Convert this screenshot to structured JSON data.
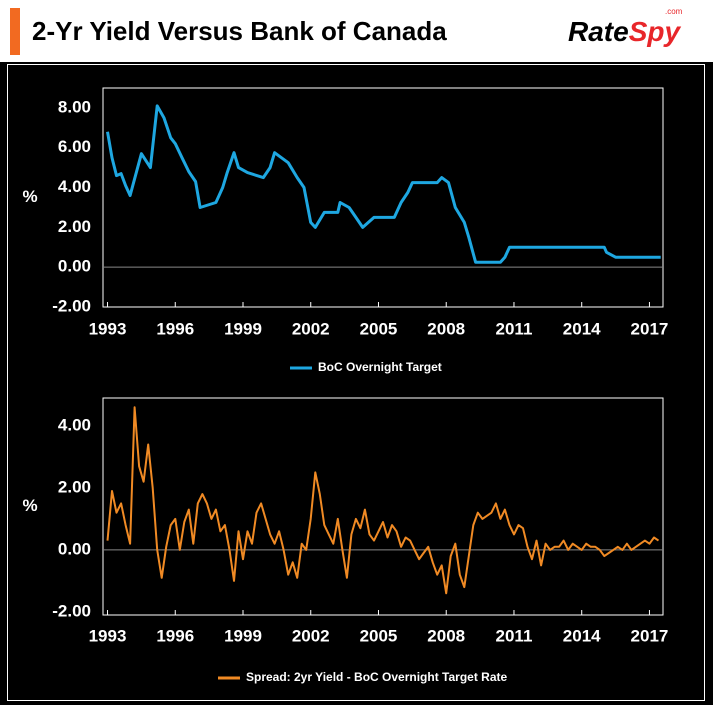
{
  "header": {
    "title": "2-Yr Yield Versus Bank of Canada",
    "logo": [
      "Rate",
      "Spy"
    ],
    "logo_suffix": ".com"
  },
  "chart_data": [
    {
      "type": "line",
      "y_label": "%",
      "x": [
        1993,
        1993.2,
        1993.4,
        1993.6,
        1993.8,
        1994,
        1994.5,
        1994.9,
        1995.2,
        1995.5,
        1995.8,
        1996,
        1996.3,
        1996.6,
        1996.9,
        1997.1,
        1997.8,
        1998.1,
        1998.3,
        1998.6,
        1998.8,
        1999.2,
        1999.9,
        2000.2,
        2000.4,
        2001,
        2001.4,
        2001.7,
        2002,
        2002.2,
        2002.6,
        2003.2,
        2003.3,
        2003.7,
        2004,
        2004.3,
        2004.8,
        2005.7,
        2006,
        2006.3,
        2006.5,
        2007.6,
        2007.8,
        2008.1,
        2008.4,
        2008.8,
        2009,
        2009.3,
        2010.4,
        2010.6,
        2010.8,
        2015,
        2015.1,
        2015.5,
        2017.5
      ],
      "series": [
        {
          "name": "BoC Overnight Target",
          "color": "#1ea7e1",
          "values": [
            6.8,
            5.5,
            4.6,
            4.7,
            4.1,
            3.6,
            5.7,
            5.0,
            8.1,
            7.5,
            6.5,
            6.2,
            5.5,
            4.8,
            4.3,
            3.0,
            3.25,
            4.0,
            4.75,
            5.75,
            5.0,
            4.75,
            4.5,
            5.0,
            5.75,
            5.25,
            4.5,
            4.0,
            2.25,
            2.0,
            2.75,
            2.75,
            3.25,
            3.0,
            2.5,
            2.0,
            2.5,
            2.5,
            3.25,
            3.75,
            4.25,
            4.25,
            4.5,
            4.25,
            3.0,
            2.25,
            1.5,
            0.25,
            0.25,
            0.5,
            1.0,
            1.0,
            0.75,
            0.5,
            0.5
          ]
        }
      ],
      "xlim": [
        1992.8,
        2017.6
      ],
      "xticks": [
        1993,
        1996,
        1999,
        2002,
        2005,
        2008,
        2011,
        2014,
        2017
      ],
      "ylim": [
        -2,
        9
      ],
      "yticks": [
        {
          "value": -2,
          "label": "-2.00"
        },
        {
          "value": 0,
          "label": "0.00"
        },
        {
          "value": 2,
          "label": "2.00"
        },
        {
          "value": 4,
          "label": "4.00"
        },
        {
          "value": 6,
          "label": "6.00"
        },
        {
          "value": 8,
          "label": "8.00"
        }
      ],
      "grid": false,
      "legend": "bottom"
    },
    {
      "type": "line",
      "y_label": "%",
      "x": [
        1993,
        1993.2,
        1993.4,
        1993.6,
        1993.8,
        1994,
        1994.2,
        1994.4,
        1994.6,
        1994.8,
        1995,
        1995.2,
        1995.4,
        1995.6,
        1995.8,
        1996,
        1996.2,
        1996.4,
        1996.6,
        1996.8,
        1997,
        1997.2,
        1997.4,
        1997.6,
        1997.8,
        1998,
        1998.2,
        1998.4,
        1998.6,
        1998.8,
        1999,
        1999.2,
        1999.4,
        1999.6,
        1999.8,
        2000,
        2000.2,
        2000.4,
        2000.6,
        2000.8,
        2001,
        2001.2,
        2001.4,
        2001.6,
        2001.8,
        2002,
        2002.2,
        2002.4,
        2002.6,
        2002.8,
        2003,
        2003.2,
        2003.4,
        2003.6,
        2003.8,
        2004,
        2004.2,
        2004.4,
        2004.6,
        2004.8,
        2005,
        2005.2,
        2005.4,
        2005.6,
        2005.8,
        2006,
        2006.2,
        2006.4,
        2006.6,
        2006.8,
        2007,
        2007.2,
        2007.4,
        2007.6,
        2007.8,
        2008,
        2008.2,
        2008.4,
        2008.6,
        2008.8,
        2009,
        2009.2,
        2009.4,
        2009.6,
        2009.8,
        2010,
        2010.2,
        2010.4,
        2010.6,
        2010.8,
        2011,
        2011.2,
        2011.4,
        2011.6,
        2011.8,
        2012,
        2012.2,
        2012.4,
        2012.6,
        2012.8,
        2013,
        2013.2,
        2013.4,
        2013.6,
        2013.8,
        2014,
        2014.2,
        2014.4,
        2014.6,
        2014.8,
        2015,
        2015.2,
        2015.4,
        2015.6,
        2015.8,
        2016,
        2016.2,
        2016.4,
        2016.6,
        2016.8,
        2017,
        2017.2,
        2017.4
      ],
      "series": [
        {
          "name": "Spread: 2yr Yield - BoC Overnight Target Rate",
          "color": "#f08a24",
          "values": [
            0.3,
            1.9,
            1.2,
            1.5,
            0.8,
            0.2,
            4.6,
            2.7,
            2.2,
            3.4,
            2.0,
            0.0,
            -0.9,
            0.1,
            0.8,
            1.0,
            0.0,
            0.9,
            1.3,
            0.2,
            1.5,
            1.8,
            1.5,
            1.0,
            1.3,
            0.6,
            0.8,
            0.0,
            -1.0,
            0.6,
            -0.3,
            0.6,
            0.2,
            1.2,
            1.5,
            1.0,
            0.5,
            0.2,
            0.6,
            0.0,
            -0.8,
            -0.4,
            -0.9,
            0.2,
            0.0,
            1.0,
            2.5,
            1.8,
            0.8,
            0.5,
            0.2,
            1.0,
            0.0,
            -0.9,
            0.5,
            1.0,
            0.7,
            1.3,
            0.5,
            0.3,
            0.6,
            0.9,
            0.4,
            0.8,
            0.6,
            0.1,
            0.4,
            0.3,
            0.0,
            -0.3,
            -0.1,
            0.1,
            -0.4,
            -0.8,
            -0.5,
            -1.4,
            -0.2,
            0.2,
            -0.8,
            -1.2,
            -0.2,
            0.8,
            1.2,
            1.0,
            1.1,
            1.2,
            1.5,
            1.0,
            1.3,
            0.8,
            0.5,
            0.8,
            0.7,
            0.1,
            -0.3,
            0.3,
            -0.5,
            0.2,
            0.0,
            0.1,
            0.1,
            0.3,
            0.0,
            0.2,
            0.1,
            0.0,
            0.2,
            0.1,
            0.1,
            0.0,
            -0.2,
            -0.1,
            0.0,
            0.1,
            0.0,
            0.2,
            0.0,
            0.1,
            0.2,
            0.3,
            0.2,
            0.4,
            0.3
          ]
        }
      ],
      "xlim": [
        1992.8,
        2017.6
      ],
      "xticks": [
        1993,
        1996,
        1999,
        2002,
        2005,
        2008,
        2011,
        2014,
        2017
      ],
      "ylim": [
        -2.1,
        4.9
      ],
      "yticks": [
        {
          "value": -2,
          "label": "-2.00"
        },
        {
          "value": 0,
          "label": "0.00"
        },
        {
          "value": 2,
          "label": "2.00"
        },
        {
          "value": 4,
          "label": "4.00"
        }
      ],
      "grid": false,
      "legend": "bottom"
    }
  ]
}
